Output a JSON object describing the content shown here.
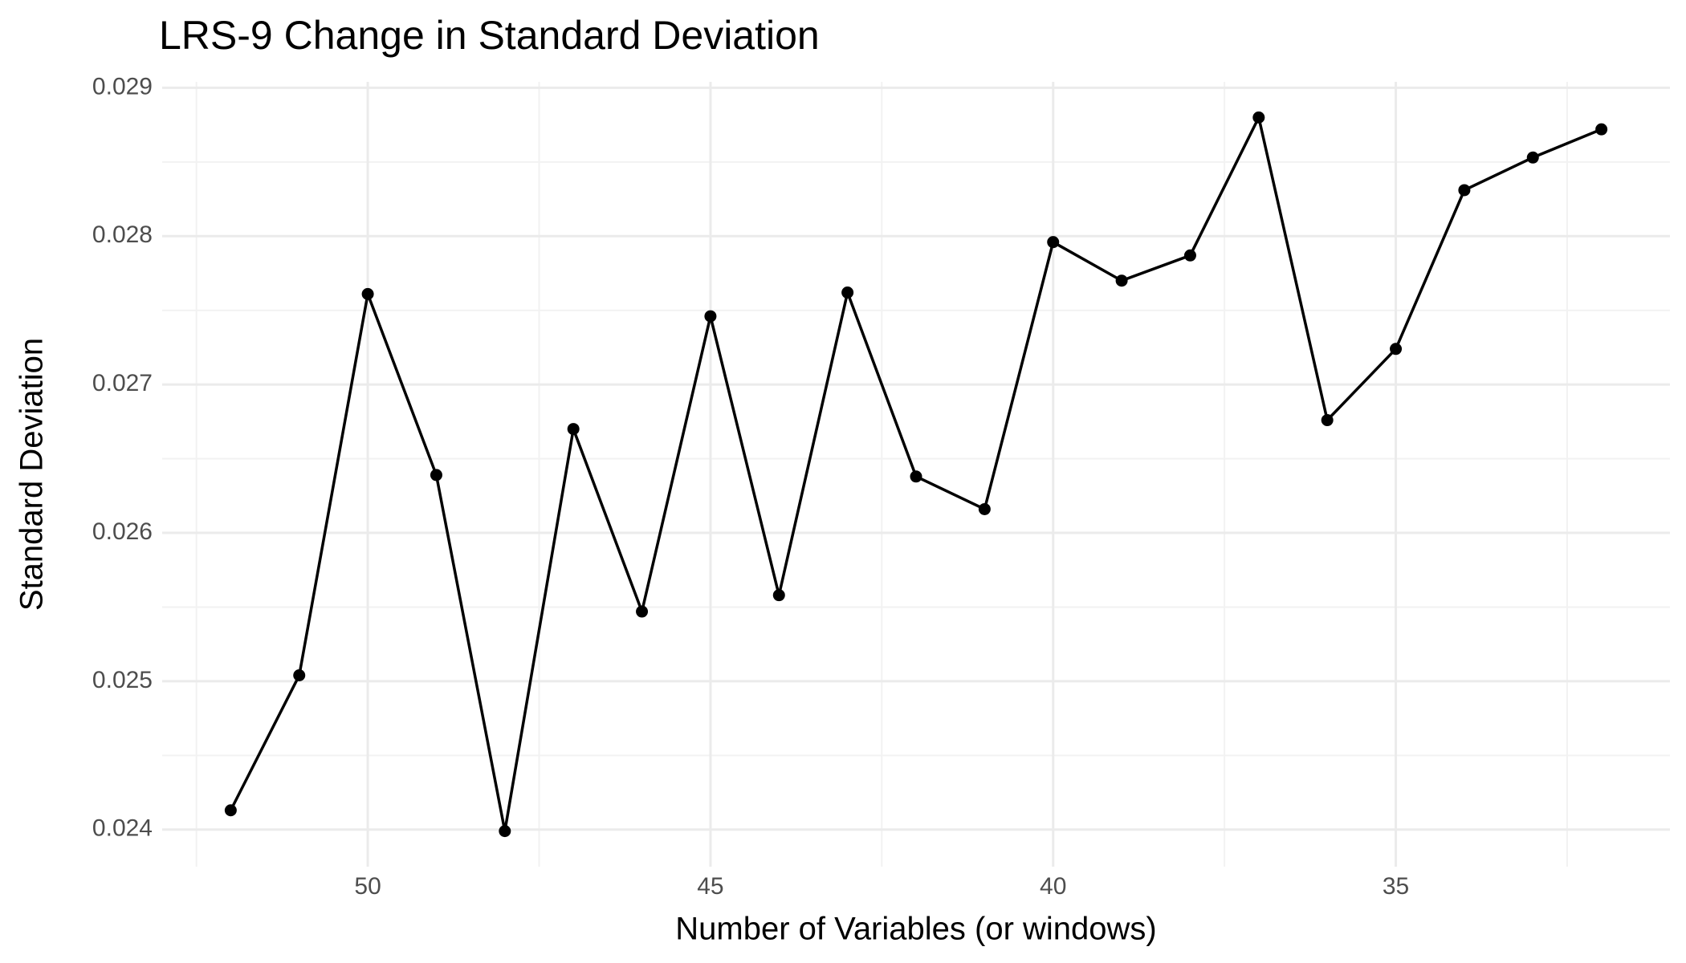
{
  "chart_data": {
    "type": "line",
    "title": "LRS-9 Change in Standard Deviation",
    "x_label": "Number of Variables (or windows)",
    "y_label": "Standard Deviation",
    "x": [
      52,
      51,
      50,
      49,
      48,
      47,
      46,
      45,
      44,
      43,
      42,
      41,
      40,
      39,
      38,
      37,
      36,
      35,
      34,
      33,
      32
    ],
    "series": [
      {
        "color": "#000000",
        "values": [
          0.02413,
          0.02504,
          0.02761,
          0.02639,
          0.02399,
          0.0267,
          0.02547,
          0.02746,
          0.02558,
          0.02762,
          0.02638,
          0.02616,
          0.02796,
          0.0277,
          0.02787,
          0.0288,
          0.02676,
          0.02724,
          0.02831,
          0.02853,
          0.02872
        ]
      }
    ],
    "xlim": [
      53,
      31
    ],
    "xticks": [
      50,
      45,
      40,
      35
    ],
    "ylim": [
      0.02375,
      0.02904
    ],
    "yticks": [
      {
        "value": 0.024,
        "label": "0.024"
      },
      {
        "value": 0.025,
        "label": "0.025"
      },
      {
        "value": 0.026,
        "label": "0.026"
      },
      {
        "value": 0.027,
        "label": "0.027"
      },
      {
        "value": 0.028,
        "label": "0.028"
      },
      {
        "value": 0.029,
        "label": "0.029"
      }
    ],
    "grid": true
  }
}
